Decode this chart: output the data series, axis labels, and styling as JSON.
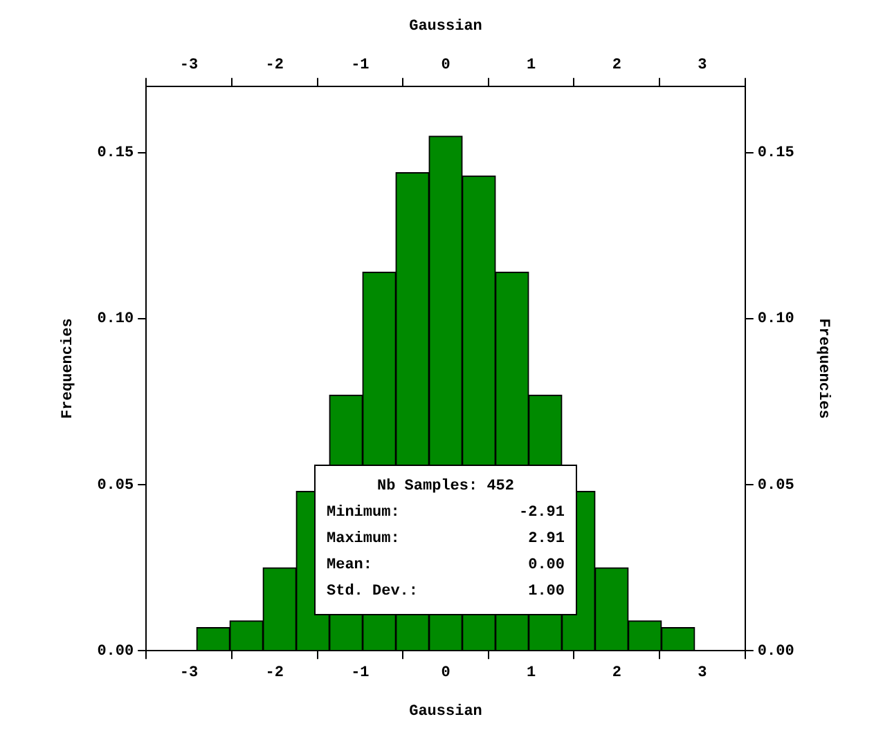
{
  "chart_data": {
    "type": "histogram",
    "xlabel": "Gaussian",
    "ylabel": "Frequencies",
    "x2label": "Gaussian",
    "y2label": "Frequencies",
    "bins": [
      -2.91,
      -2.522,
      -2.134,
      -1.746,
      -1.358,
      -0.97,
      -0.582,
      -0.194,
      0.194,
      0.582,
      0.97,
      1.358,
      1.746,
      2.134,
      2.522,
      2.91
    ],
    "values": [
      0.007,
      0.009,
      0.025,
      0.048,
      0.077,
      0.114,
      0.144,
      0.155,
      0.143,
      0.114,
      0.077,
      0.048,
      0.025,
      0.009,
      0.007
    ],
    "color": "#008a00",
    "xlim": [
      -3.5,
      3.5
    ],
    "xticks": [
      -3,
      -2,
      -1,
      0,
      1,
      2,
      3
    ],
    "x2lim": [
      -3.5,
      3.5
    ],
    "x2ticks": [
      -3,
      -2,
      -1,
      0,
      1,
      2,
      3
    ],
    "ylim": [
      0,
      0.17
    ],
    "yticks": [
      {
        "value": 0,
        "label": "0.00"
      },
      {
        "value": 0.05,
        "label": "0.05"
      },
      {
        "value": 0.1,
        "label": "0.10"
      },
      {
        "value": 0.15,
        "label": "0.15"
      }
    ],
    "y2lim": [
      0,
      0.17
    ],
    "y2ticks": [
      {
        "value": 0,
        "label": "0.00"
      },
      {
        "value": 0.05,
        "label": "0.05"
      },
      {
        "value": 0.1,
        "label": "0.10"
      },
      {
        "value": 0.15,
        "label": "0.15"
      }
    ],
    "grid": false,
    "legend": false,
    "annotations": [
      "Nb Samples: 452",
      "Minimum: -2.91",
      "Maximum: 2.91",
      "Mean: 0.00",
      "Std. Dev.: 1.00"
    ]
  }
}
